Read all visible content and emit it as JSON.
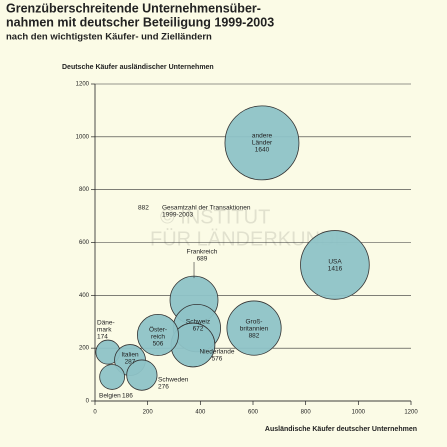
{
  "chart_data": {
    "type": "bubble",
    "title": [
      "Grenzüberschreitende Unternehmensüber-",
      "nahmen mit deutscher Beteiligung 1999-2003"
    ],
    "subtitle": "nach den wichtigsten Käufer- und Zielländern",
    "y_label": "Deutsche Käufer ausländischer Unternehmen",
    "x_label": "Ausländische Käufer deutscher Unternehmen",
    "size_legend": {
      "value": 882,
      "label": [
        "Gesamtzahl der Transaktionen",
        "1999-2003"
      ]
    },
    "watermark": [
      "© INSTITUT",
      "FÜR LÄNDERKUNDE"
    ],
    "color": "#8ec3c7",
    "xlim": [
      0,
      1200
    ],
    "xticks": [
      0,
      200,
      400,
      600,
      800,
      1000,
      1200
    ],
    "ylim": [
      0,
      1200
    ],
    "yticks": [
      0,
      200,
      400,
      600,
      800,
      1000,
      1200
    ],
    "grid": true,
    "points": [
      {
        "name": [
          "andere",
          "Länder"
        ],
        "x": 634,
        "y": 977,
        "size": 1640
      },
      {
        "name": [
          "USA"
        ],
        "x": 911,
        "y": 515,
        "size": 1416
      },
      {
        "name": [
          "Groß-",
          "britannien"
        ],
        "x": 604,
        "y": 276,
        "size": 882
      },
      {
        "name": [
          "Frankreich"
        ],
        "x": 376,
        "y": 382,
        "size": 689
      },
      {
        "name": [
          "Schweiz"
        ],
        "x": 387,
        "y": 276,
        "size": 672
      },
      {
        "name": [
          "Niederlande"
        ],
        "x": 372,
        "y": 212,
        "size": 576
      },
      {
        "name": [
          "Öster-",
          "reich"
        ],
        "x": 239,
        "y": 250,
        "size": 506
      },
      {
        "name": [
          "Däne-",
          "mark"
        ],
        "x": 49,
        "y": 185,
        "size": 174
      },
      {
        "name": [
          "Italien"
        ],
        "x": 133,
        "y": 155,
        "size": 287
      },
      {
        "name": [
          "Schweden"
        ],
        "x": 178,
        "y": 98,
        "size": 276
      },
      {
        "name": [
          "Belgien"
        ],
        "x": 65,
        "y": 91,
        "size": 186
      }
    ]
  }
}
